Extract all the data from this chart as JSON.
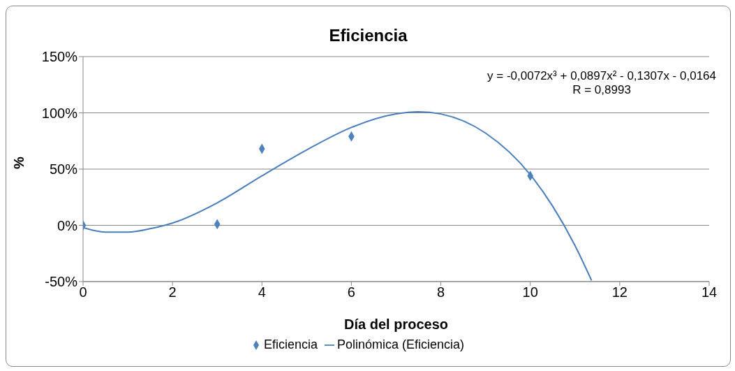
{
  "chart_data": {
    "type": "scatter",
    "title": "Eficiencia",
    "xlabel": "Día del proceso",
    "ylabel": "%",
    "annotations": [
      "y = -0,0072x³ + 0,0897x² - 0,1307x - 0,0164",
      "R = 0,8993"
    ],
    "x": [
      0,
      3,
      4,
      6,
      10
    ],
    "series": [
      {
        "name": "Eficiencia",
        "color": "#4f81bd",
        "marker": "diamond",
        "values": [
          0,
          1,
          68,
          79,
          44
        ]
      },
      {
        "name": "Polinómica (Eficiencia)",
        "type": "line",
        "color": "#4a7ebb",
        "marker": "none",
        "x": [
          0,
          0.5,
          1,
          1.5,
          2,
          3,
          4,
          5,
          6,
          7,
          7.5,
          8,
          9,
          10,
          10.5,
          11,
          11.37
        ],
        "values": [
          -2,
          -6,
          -6,
          -3,
          2,
          20,
          44,
          67,
          87,
          99,
          101,
          99,
          82,
          45,
          17,
          -18,
          -49
        ]
      }
    ],
    "xlim": [
      0,
      14
    ],
    "xticks": [
      0,
      2,
      4,
      6,
      8,
      10,
      12,
      14
    ],
    "ylim": [
      -50,
      150
    ],
    "yticks": [
      {
        "value": -50,
        "label": "-50%"
      },
      {
        "value": 0,
        "label": "0%"
      },
      {
        "value": 50,
        "label": "50%"
      },
      {
        "value": 100,
        "label": "100%"
      },
      {
        "value": 150,
        "label": "150%"
      }
    ],
    "grid": "y",
    "legend": "bottom"
  }
}
